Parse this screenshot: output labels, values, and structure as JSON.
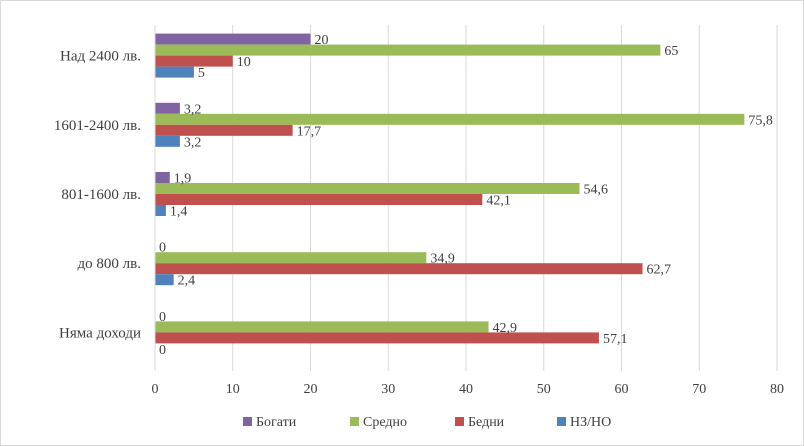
{
  "chart_data": {
    "type": "bar",
    "orientation": "horizontal",
    "title": "",
    "xlabel": "",
    "ylabel": "",
    "xlim": [
      0,
      80
    ],
    "x_ticks": [
      "0",
      "10",
      "20",
      "30",
      "40",
      "50",
      "60",
      "70",
      "80"
    ],
    "grid": "vertical",
    "legend_position": "bottom",
    "categories": [
      "Над 2400 лв.",
      "1601-2400 лв.",
      "801-1600 лв.",
      "до 800 лв.",
      "Няма доходи"
    ],
    "series": [
      {
        "name": "Богати",
        "color": "#8064a2",
        "values": [
          20,
          3.2,
          1.9,
          0,
          0
        ],
        "labels": [
          "20",
          "3,2",
          "1,9",
          "0",
          "0"
        ]
      },
      {
        "name": "Средно",
        "color": "#9bbb59",
        "values": [
          65,
          75.8,
          54.6,
          34.9,
          42.9
        ],
        "labels": [
          "65",
          "75,8",
          "54,6",
          "34,9",
          "42,9"
        ]
      },
      {
        "name": "Бедни",
        "color": "#c0504d",
        "values": [
          10,
          17.7,
          42.1,
          62.7,
          57.1
        ],
        "labels": [
          "10",
          "17,7",
          "42,1",
          "62,7",
          "57,1"
        ]
      },
      {
        "name": "НЗ/НО",
        "color": "#4f81bd",
        "values": [
          5,
          3.2,
          1.4,
          2.4,
          0
        ],
        "labels": [
          "5",
          "3,2",
          "1,4",
          "2,4",
          "0"
        ]
      }
    ]
  }
}
